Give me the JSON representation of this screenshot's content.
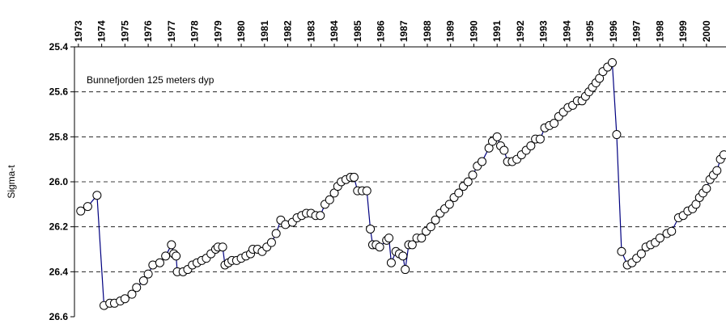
{
  "chart_data": {
    "type": "line",
    "annotation": "Bunnefjorden 125 meters dyp",
    "ylabel": "Sigma-t",
    "x": [
      1973.1,
      1973.4,
      1973.8,
      1974.1,
      1974.35,
      1974.55,
      1974.8,
      1975.0,
      1975.3,
      1975.5,
      1975.8,
      1976.0,
      1976.2,
      1976.5,
      1976.75,
      1977.0,
      1977.1,
      1977.2,
      1977.25,
      1977.5,
      1977.7,
      1977.9,
      1978.1,
      1978.3,
      1978.5,
      1978.7,
      1978.9,
      1979.0,
      1979.2,
      1979.3,
      1979.45,
      1979.6,
      1979.8,
      1980.0,
      1980.2,
      1980.4,
      1980.5,
      1980.7,
      1980.9,
      1981.1,
      1981.3,
      1981.5,
      1981.7,
      1981.9,
      1982.2,
      1982.4,
      1982.6,
      1982.8,
      1983.0,
      1983.2,
      1983.4,
      1983.6,
      1983.8,
      1984.0,
      1984.15,
      1984.3,
      1984.5,
      1984.7,
      1984.85,
      1985.0,
      1985.2,
      1985.4,
      1985.55,
      1985.65,
      1985.8,
      1985.95,
      1986.25,
      1986.35,
      1986.45,
      1986.65,
      1986.8,
      1986.95,
      1987.05,
      1987.2,
      1987.35,
      1987.55,
      1987.75,
      1987.95,
      1988.15,
      1988.35,
      1988.55,
      1988.75,
      1988.95,
      1989.15,
      1989.35,
      1989.55,
      1989.75,
      1989.95,
      1990.15,
      1990.35,
      1990.65,
      1990.8,
      1991.0,
      1991.15,
      1991.3,
      1991.45,
      1991.65,
      1991.85,
      1992.05,
      1992.25,
      1992.45,
      1992.65,
      1992.85,
      1993.05,
      1993.25,
      1993.45,
      1993.65,
      1993.85,
      1994.05,
      1994.25,
      1994.45,
      1994.65,
      1994.8,
      1994.95,
      1995.1,
      1995.25,
      1995.4,
      1995.55,
      1995.75,
      1995.95,
      1996.14,
      1996.35,
      1996.6,
      1996.8,
      1997.0,
      1997.2,
      1997.4,
      1997.6,
      1997.8,
      1998.0,
      1998.3,
      1998.5,
      1998.8,
      1999.0,
      1999.2,
      1999.4,
      1999.55,
      1999.7,
      1999.85,
      2000.0,
      2000.15,
      2000.3,
      2000.45,
      2000.6,
      2000.75
    ],
    "series": [
      {
        "color": "#000080",
        "values": [
          26.13,
          26.11,
          26.06,
          26.55,
          26.54,
          26.54,
          26.53,
          26.52,
          26.5,
          26.47,
          26.44,
          26.41,
          26.37,
          26.36,
          26.33,
          26.28,
          26.32,
          26.33,
          26.4,
          26.4,
          26.39,
          26.37,
          26.36,
          26.35,
          26.34,
          26.32,
          26.3,
          26.29,
          26.29,
          26.37,
          26.36,
          26.35,
          26.35,
          26.34,
          26.33,
          26.32,
          26.3,
          26.3,
          26.31,
          26.29,
          26.27,
          26.23,
          26.17,
          26.19,
          26.18,
          26.16,
          26.15,
          26.14,
          26.14,
          26.15,
          26.15,
          26.1,
          26.08,
          26.05,
          26.02,
          26.0,
          25.99,
          25.98,
          25.98,
          26.04,
          26.04,
          26.04,
          26.21,
          26.28,
          26.28,
          26.29,
          26.26,
          26.25,
          26.36,
          26.31,
          26.32,
          26.33,
          26.39,
          26.28,
          26.28,
          26.25,
          26.25,
          26.22,
          26.2,
          26.17,
          26.14,
          26.12,
          26.1,
          26.07,
          26.05,
          26.02,
          26.0,
          25.97,
          25.93,
          25.91,
          25.85,
          25.82,
          25.8,
          25.84,
          25.86,
          25.91,
          25.91,
          25.9,
          25.88,
          25.86,
          25.84,
          25.81,
          25.81,
          25.76,
          25.75,
          25.74,
          25.71,
          25.69,
          25.67,
          25.66,
          25.64,
          25.64,
          25.62,
          25.6,
          25.58,
          25.56,
          25.54,
          25.51,
          25.49,
          25.47,
          25.79,
          26.31,
          26.37,
          26.36,
          26.34,
          26.32,
          26.29,
          26.28,
          26.27,
          26.25,
          26.23,
          26.22,
          26.16,
          26.15,
          26.13,
          26.12,
          26.1,
          26.07,
          26.05,
          26.03,
          25.99,
          25.97,
          25.95,
          25.9,
          25.88
        ]
      }
    ],
    "xlim": [
      1972.83,
      2000.84
    ],
    "xticks": [
      1973,
      1974,
      1975,
      1976,
      1977,
      1978,
      1979,
      1980,
      1981,
      1982,
      1983,
      1984,
      1985,
      1986,
      1987,
      1988,
      1989,
      1990,
      1991,
      1992,
      1993,
      1994,
      1995,
      1996,
      1997,
      1998,
      1999,
      2000
    ],
    "ylim": [
      25.4,
      26.6
    ],
    "y_inverted": true,
    "yticks": [
      {
        "value": 25.4,
        "label": "25.4"
      },
      {
        "value": 25.6,
        "label": "25.6"
      },
      {
        "value": 25.8,
        "label": "25.8"
      },
      {
        "value": 26.0,
        "label": "26.0"
      },
      {
        "value": 26.2,
        "label": "26.2"
      },
      {
        "value": 26.4,
        "label": "26.4"
      },
      {
        "value": 26.6,
        "label": "26.6"
      }
    ],
    "grid": true,
    "marker": "circle",
    "marker_fill": "#ffffff"
  }
}
